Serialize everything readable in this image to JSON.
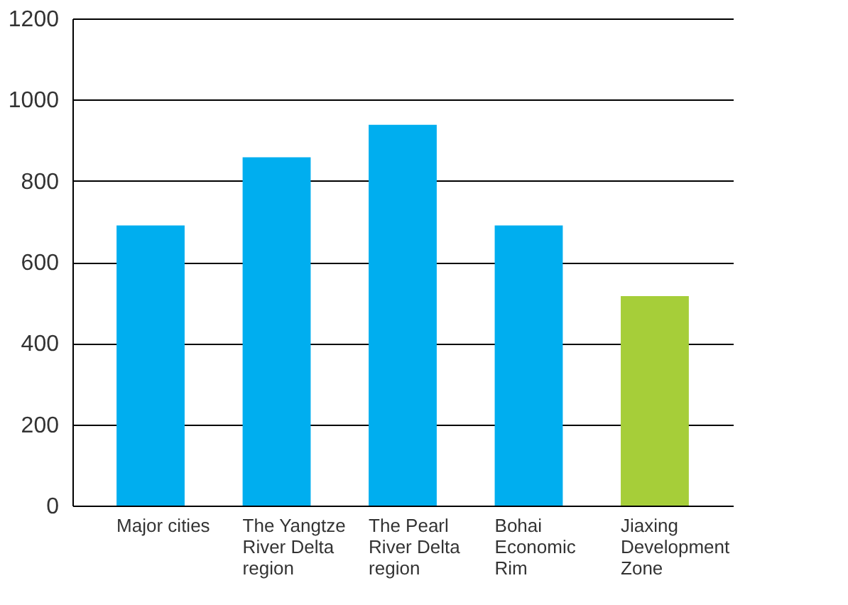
{
  "chart_data": {
    "type": "bar",
    "categories": [
      "Major cities",
      "The Yangtze\nRiver Delta\nregion",
      "The Pearl\nRiver Delta\nregion",
      "Bohai\nEconomic\nRim",
      "Jiaxing\nDevelopment\nZone"
    ],
    "values": [
      690,
      858,
      938,
      690,
      516
    ],
    "colors": [
      "#00aeef",
      "#00aeef",
      "#00aeef",
      "#00aeef",
      "#a6ce39"
    ],
    "ylim": [
      0,
      1200
    ],
    "yticks": [
      0,
      200,
      400,
      600,
      800,
      1000,
      1200
    ],
    "grid": "y"
  }
}
